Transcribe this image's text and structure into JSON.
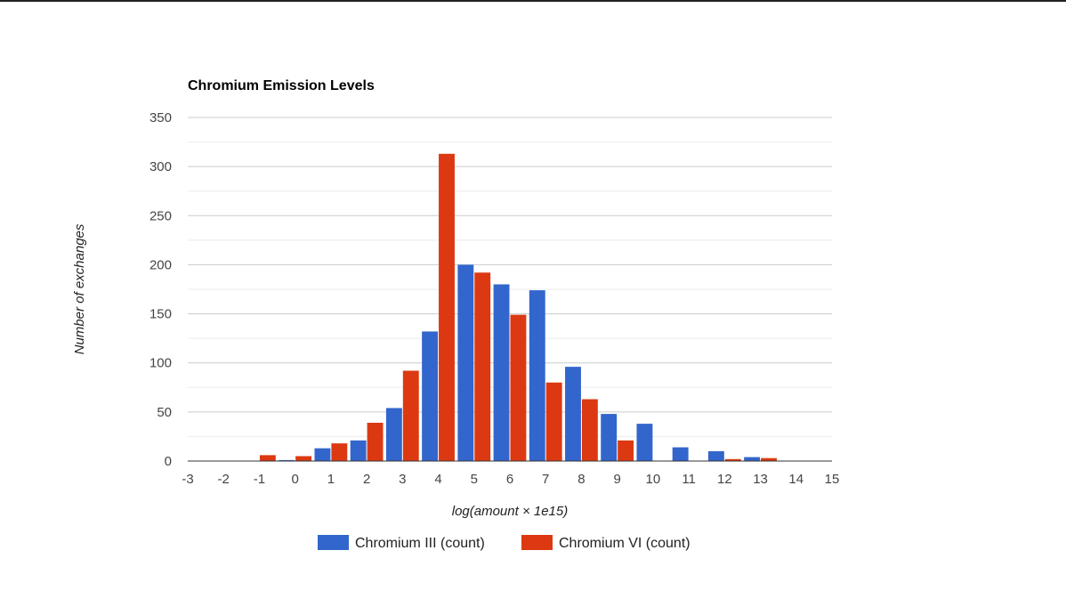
{
  "colors": {
    "series_a": "#3366cc",
    "series_b": "#dc3912",
    "grid": "#cccccc",
    "minor_grid": "#ebebeb",
    "axis": "#333333",
    "text": "#444444"
  },
  "chart_data": {
    "type": "bar",
    "title": "Chromium Emission Levels",
    "xlabel": "log(amount × 1e15)",
    "ylabel": "Number of exchanges",
    "xlim": [
      -3,
      15
    ],
    "ylim": [
      0,
      350
    ],
    "x_ticks": [
      -3,
      -2,
      -1,
      0,
      1,
      2,
      3,
      4,
      5,
      6,
      7,
      8,
      9,
      10,
      11,
      12,
      13,
      14,
      15
    ],
    "y_ticks": [
      0,
      50,
      100,
      150,
      200,
      250,
      300,
      350
    ],
    "grid": true,
    "legend_position": "bottom",
    "bin_centers": [
      -2,
      -1,
      0,
      1,
      2,
      3,
      4,
      5,
      6,
      7,
      8,
      9,
      10,
      11,
      12,
      13,
      14
    ],
    "series": [
      {
        "name": "Chromium III (count)",
        "color": "#3366cc",
        "values": [
          0,
          0,
          1,
          13,
          21,
          54,
          132,
          200,
          180,
          174,
          96,
          48,
          38,
          14,
          10,
          4,
          0
        ]
      },
      {
        "name": "Chromium VI (count)",
        "color": "#dc3912",
        "values": [
          0,
          6,
          5,
          18,
          39,
          92,
          313,
          192,
          149,
          80,
          63,
          21,
          0,
          0,
          2,
          3,
          0
        ]
      }
    ]
  }
}
